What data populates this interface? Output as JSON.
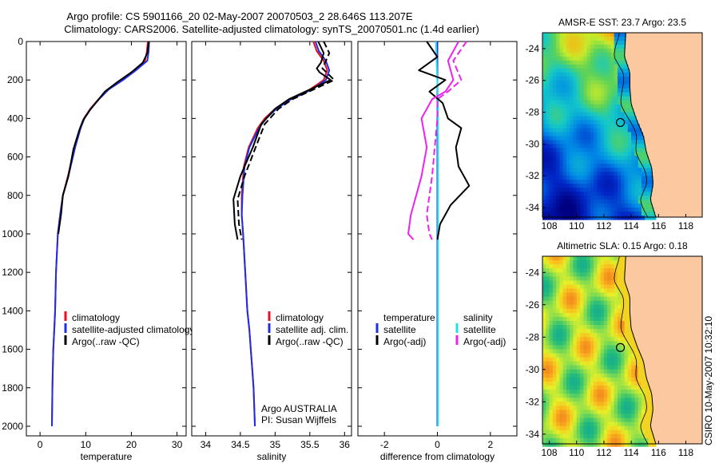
{
  "title": {
    "line1": "Argo profile: CS 5901166_20 02-May-2007 20070503_2 28.646S 113.207E",
    "line2": "Climatology: CARS2006. Satellite-adjusted climatology: synTS_20070501.nc (1.4d earlier)"
  },
  "side_label": "CSIRO 10-May-2007 10:32:10",
  "colors": {
    "climatology": "#e8101e",
    "satellite": "#1f2fe0",
    "argo": "#000000",
    "cyan": "#22e0e8",
    "magenta": "#ee22ee",
    "land": "#fcc8a0"
  },
  "chart_data": [
    {
      "type": "line",
      "xlabel": "temperature",
      "xlim": [
        -3,
        32
      ],
      "ylim": [
        0,
        2050
      ],
      "y_reversed": true,
      "xticks": [
        0,
        10,
        20,
        30
      ],
      "yticks": [
        0,
        200,
        400,
        600,
        800,
        1000,
        1200,
        1400,
        1600,
        1800,
        2000
      ],
      "legend": [
        "climatology",
        "satellite-adjusted climatology",
        "Argo(..raw -QC)"
      ],
      "series": [
        {
          "name": "climatology",
          "color": "#e8101e",
          "dash": "",
          "x": [
            23.6,
            23.4,
            23.0,
            20.8,
            18.0,
            14.8,
            12.8,
            11.0,
            9.6,
            8.8,
            7.6,
            6.1,
            5.0,
            4.4,
            3.9,
            3.5,
            3.3,
            3.1,
            2.9,
            2.8,
            2.7,
            2.6
          ],
          "y": [
            0,
            50,
            100,
            150,
            200,
            250,
            300,
            350,
            400,
            450,
            550,
            700,
            800,
            900,
            1000,
            1200,
            1400,
            1500,
            1600,
            1700,
            1800,
            2000
          ]
        },
        {
          "name": "satellite-adjusted climatology",
          "color": "#1f2fe0",
          "dash": "",
          "x": [
            23.9,
            23.8,
            23.5,
            21.0,
            18.2,
            15.0,
            12.9,
            11.1,
            9.7,
            8.9,
            7.7,
            6.2,
            5.0,
            4.4,
            3.9,
            3.5,
            3.3,
            3.1,
            2.9,
            2.8,
            2.7,
            2.6
          ],
          "y": [
            0,
            50,
            100,
            150,
            200,
            250,
            300,
            350,
            400,
            450,
            550,
            700,
            800,
            900,
            1000,
            1200,
            1400,
            1500,
            1600,
            1700,
            1800,
            2000
          ]
        },
        {
          "name": "Argo(..raw -QC)",
          "color": "#000000",
          "dash": "",
          "x": [
            23.8,
            23.5,
            22.5,
            20.0,
            17.0,
            14.2,
            12.5,
            10.8,
            9.4,
            8.6,
            7.3,
            6.2,
            5.0,
            4.6,
            4.0
          ],
          "y": [
            0,
            60,
            110,
            160,
            210,
            260,
            310,
            360,
            410,
            460,
            560,
            700,
            800,
            900,
            1000
          ]
        }
      ],
      "annotations": []
    },
    {
      "type": "line",
      "xlabel": "salinity",
      "xlim": [
        33.8,
        36.1
      ],
      "ylim": [
        0,
        2050
      ],
      "y_reversed": true,
      "xticks": [
        34,
        34.5,
        35,
        35.5,
        36
      ],
      "xticklabels": [
        "34",
        "34.5",
        "35",
        "35.5",
        "36"
      ],
      "yticks": [
        0,
        200,
        400,
        600,
        800,
        1000,
        1200,
        1400,
        1600,
        1800,
        2000
      ],
      "legend": [
        "climatology",
        "satellite adj. clim.",
        "Argo(..raw -QC)"
      ],
      "series": [
        {
          "name": "climatology",
          "color": "#e8101e",
          "dash": "",
          "x": [
            35.55,
            35.6,
            35.7,
            35.75,
            35.7,
            35.5,
            35.2,
            35.0,
            34.85,
            34.75,
            34.62,
            34.55,
            34.52,
            34.52,
            34.54,
            34.57,
            34.6,
            34.63,
            34.65,
            34.67,
            34.69,
            34.71
          ],
          "y": [
            0,
            50,
            100,
            150,
            200,
            250,
            300,
            350,
            400,
            450,
            550,
            650,
            800,
            900,
            1000,
            1200,
            1400,
            1500,
            1600,
            1700,
            1800,
            2000
          ]
        },
        {
          "name": "satellite adj. clim.",
          "color": "#1f2fe0",
          "dash": "",
          "x": [
            35.58,
            35.63,
            35.73,
            35.78,
            35.73,
            35.53,
            35.23,
            35.02,
            34.87,
            34.77,
            34.63,
            34.56,
            34.53,
            34.52,
            34.54,
            34.57,
            34.6,
            34.63,
            34.65,
            34.67,
            34.69,
            34.71
          ],
          "y": [
            0,
            50,
            100,
            150,
            200,
            250,
            300,
            350,
            400,
            450,
            550,
            650,
            800,
            900,
            1000,
            1200,
            1400,
            1500,
            1600,
            1700,
            1800,
            2000
          ]
        },
        {
          "name": "Argo(..raw -QC)",
          "color": "#000000",
          "dash": "",
          "x": [
            35.62,
            35.7,
            35.66,
            35.6,
            35.64,
            35.8,
            35.5,
            35.2,
            35.0,
            34.8,
            34.68,
            34.5,
            34.4,
            34.42,
            34.46
          ],
          "y": [
            0,
            60,
            110,
            140,
            160,
            200,
            250,
            300,
            350,
            430,
            550,
            700,
            820,
            950,
            1030
          ]
        },
        {
          "name": "Argo(..raw -QC)",
          "color": "#000000",
          "dash": "8 4",
          "x": [
            35.7,
            35.78,
            35.72,
            35.68,
            35.74,
            35.85,
            35.55,
            35.25,
            35.05,
            34.85,
            34.72,
            34.56,
            34.46,
            34.48,
            34.52
          ],
          "y": [
            0,
            60,
            110,
            140,
            160,
            200,
            250,
            300,
            350,
            430,
            550,
            700,
            820,
            950,
            1030
          ]
        }
      ],
      "annotations": [
        "Argo AUSTRALIA",
        "PI: Susan Wijffels"
      ]
    },
    {
      "type": "line",
      "xlabel": "difference from climatology",
      "xlim": [
        -3,
        3
      ],
      "ylim": [
        0,
        2050
      ],
      "y_reversed": true,
      "xticks": [
        -2,
        0,
        2
      ],
      "yticks": [
        0,
        200,
        400,
        600,
        800,
        1000,
        1200,
        1400,
        1600,
        1800,
        2000
      ],
      "legend": [
        "temperature",
        "satellite",
        "Argo(-adj)",
        "salinity",
        "satellite",
        "Argo(-adj)"
      ],
      "series": [
        {
          "name": "satellite",
          "color": "#1f2fe0",
          "dash": "",
          "x": [
            0.0,
            0.0,
            0.0,
            0.0,
            0.0
          ],
          "y": [
            0,
            200,
            500,
            1000,
            2000
          ]
        },
        {
          "name": "satellite",
          "color": "#22e0e8",
          "dash": "",
          "x": [
            -0.05,
            -0.03,
            0.02,
            0.02,
            0.02
          ],
          "y": [
            0,
            100,
            300,
            1000,
            2000
          ]
        },
        {
          "name": "Argo(-adj)",
          "color": "#000000",
          "dash": "",
          "x": [
            -0.4,
            0.0,
            -0.7,
            0.3,
            -0.3,
            0.2,
            0.4,
            0.9,
            0.7,
            0.8,
            1.2,
            0.5,
            0.1,
            0.0
          ],
          "y": [
            0,
            80,
            150,
            200,
            260,
            320,
            400,
            450,
            550,
            650,
            750,
            850,
            950,
            1030
          ]
        },
        {
          "name": "Argo(-adj)",
          "color": "#ee22ee",
          "dash": "",
          "x": [
            0.8,
            0.4,
            0.6,
            0.3,
            -0.2,
            -0.6,
            -0.4,
            -0.6,
            -0.8,
            -1.0,
            -1.1,
            -0.9
          ],
          "y": [
            0,
            100,
            200,
            260,
            300,
            400,
            550,
            700,
            800,
            900,
            1000,
            1030
          ]
        },
        {
          "name": "Argo(-adj)",
          "color": "#ee22ee",
          "dash": "8 4",
          "x": [
            1.1,
            0.6,
            0.9,
            0.4,
            0.0,
            0.0,
            -0.1,
            -0.2,
            -0.3,
            -0.4,
            -0.3,
            -0.2
          ],
          "y": [
            0,
            100,
            200,
            260,
            300,
            400,
            550,
            700,
            800,
            900,
            1000,
            1030
          ]
        }
      ],
      "annotations": []
    },
    {
      "type": "heatmap",
      "title": "AMSR-E SST: 23.7 Argo: 23.5",
      "xlim": [
        107.5,
        119.2
      ],
      "ylim": [
        -34.6,
        -23.0
      ],
      "xticks": [
        108,
        110,
        112,
        114,
        116,
        118
      ],
      "yticks": [
        -24,
        -26,
        -28,
        -30,
        -32,
        -34
      ],
      "yticklabels": [
        "-24",
        "-26",
        "-28",
        "-30",
        "-32",
        "-34"
      ],
      "marker": {
        "lon": 113.207,
        "lat": -28.646
      },
      "palette": "sst"
    },
    {
      "type": "heatmap",
      "title": "Altimetric SLA: 0.15 Argo: 0.18",
      "xlim": [
        107.5,
        119.2
      ],
      "ylim": [
        -34.6,
        -23.0
      ],
      "xticks": [
        108,
        110,
        112,
        114,
        116,
        118
      ],
      "yticks": [
        -24,
        -26,
        -28,
        -30,
        -32,
        -34
      ],
      "yticklabels": [
        "-24",
        "-26",
        "-28",
        "-30",
        "-32",
        "-34"
      ],
      "marker": {
        "lon": 113.207,
        "lat": -28.646
      },
      "palette": "sla"
    }
  ]
}
